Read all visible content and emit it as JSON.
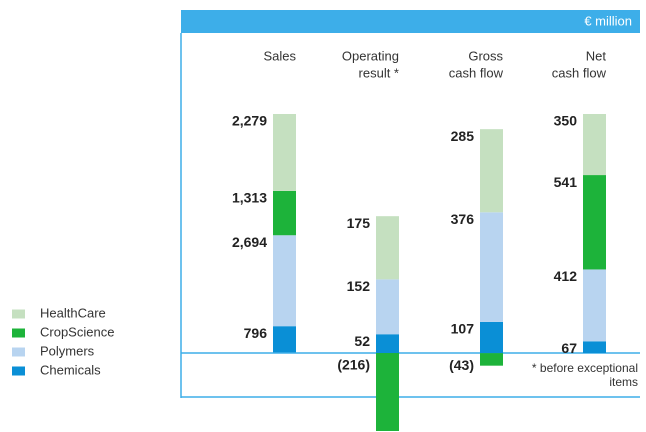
{
  "unit": "€ million",
  "footnote": [
    "* before exceptional",
    "items"
  ],
  "chart_data": [
    {
      "type": "stacked_bar",
      "title": [
        "Sales"
      ],
      "ylim": [
        -2309,
        7082
      ],
      "series": [
        {
          "name": "Chemicals",
          "color": "#0a8fd6",
          "values": [
            796
          ],
          "value_labels": [
            "796"
          ]
        },
        {
          "name": "Polymers",
          "color": "#b8d4f0",
          "values": [
            2694
          ],
          "value_labels": [
            "2,694"
          ]
        },
        {
          "name": "CropScience",
          "color": "#1db33a",
          "values": [
            1313
          ],
          "value_labels": [
            "1,313"
          ]
        },
        {
          "name": "HealthCare",
          "color": "#c5e0c0",
          "values": [
            2279
          ],
          "value_labels": [
            "2,279"
          ]
        }
      ]
    },
    {
      "type": "stacked_bar",
      "title": [
        "Operating",
        "result *"
      ],
      "ylim": [
        -216,
        662
      ],
      "series": [
        {
          "name": "Chemicals",
          "color": "#0a8fd6",
          "values": [
            52
          ]
        },
        {
          "name": "Polymers",
          "color": "#b8d4f0",
          "values": [
            152
          ]
        },
        {
          "name": "CropScience",
          "color": "#1db33a",
          "values": [
            -216
          ],
          "value_labels": [
            "(216)"
          ]
        },
        {
          "name": "HealthCare",
          "color": "#c5e0c0",
          "values": [
            175
          ]
        }
      ]
    },
    {
      "type": "stacked_bar",
      "title": [
        "Gross",
        "cash flow"
      ],
      "ylim": [
        -267,
        820
      ],
      "series": [
        {
          "name": "Chemicals",
          "color": "#0a8fd6",
          "values": [
            107
          ]
        },
        {
          "name": "Polymers",
          "color": "#b8d4f0",
          "values": [
            376
          ]
        },
        {
          "name": "CropScience",
          "color": "#1db33a",
          "values": [
            -43
          ],
          "value_labels": [
            "(43)"
          ]
        },
        {
          "name": "HealthCare",
          "color": "#c5e0c0",
          "values": [
            285
          ]
        }
      ]
    },
    {
      "type": "stacked_bar",
      "title": [
        "Net",
        "cash flow"
      ],
      "ylim": [
        -447,
        1370
      ],
      "series": [
        {
          "name": "Chemicals",
          "color": "#0a8fd6",
          "values": [
            67
          ]
        },
        {
          "name": "Polymers",
          "color": "#b8d4f0",
          "values": [
            412
          ]
        },
        {
          "name": "CropScience",
          "color": "#1db33a",
          "values": [
            541
          ]
        },
        {
          "name": "HealthCare",
          "color": "#c5e0c0",
          "values": [
            350
          ]
        }
      ]
    }
  ]
}
